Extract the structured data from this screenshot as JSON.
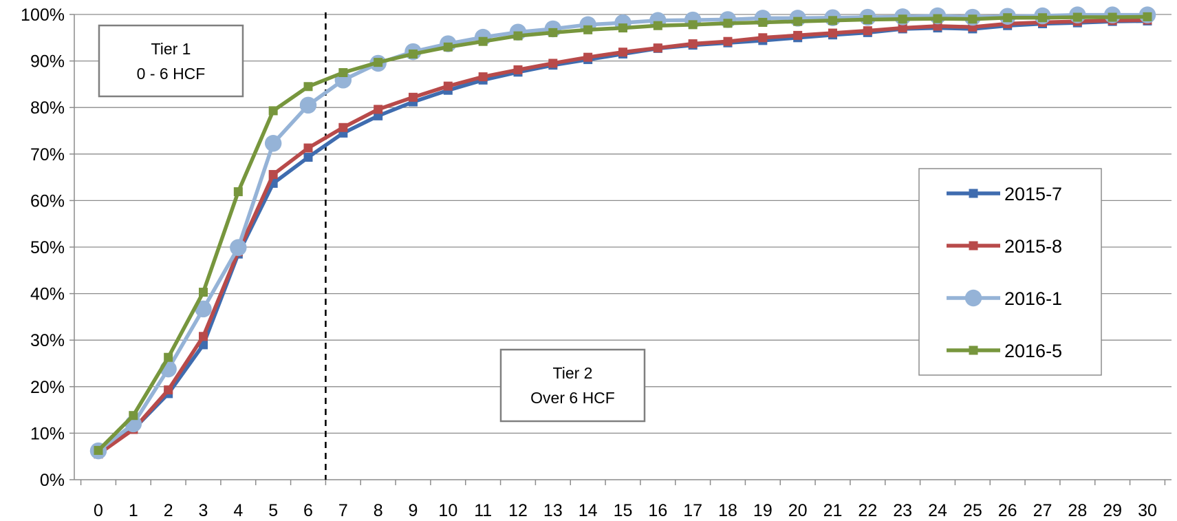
{
  "chart_data": {
    "type": "line",
    "title": "",
    "xlabel": "",
    "ylabel": "",
    "x": [
      0,
      1,
      2,
      3,
      4,
      5,
      6,
      7,
      8,
      9,
      10,
      11,
      12,
      13,
      14,
      15,
      16,
      17,
      18,
      19,
      20,
      21,
      22,
      23,
      24,
      25,
      26,
      27,
      28,
      29,
      30
    ],
    "x_tick_labels": [
      "0",
      "1",
      "2",
      "3",
      "4",
      "5",
      "6",
      "7",
      "8",
      "9",
      "10",
      "11",
      "12",
      "13",
      "14",
      "15",
      "16",
      "17",
      "18",
      "19",
      "20",
      "21",
      "22",
      "23",
      "24",
      "25",
      "26",
      "27",
      "28",
      "29",
      "30"
    ],
    "ylim": [
      0,
      100
    ],
    "y_ticks": [
      0,
      10,
      20,
      30,
      40,
      50,
      60,
      70,
      80,
      90,
      100
    ],
    "y_tick_labels": [
      "0%",
      "10%",
      "20%",
      "30%",
      "40%",
      "50%",
      "60%",
      "70%",
      "80%",
      "90%",
      "100%"
    ],
    "grid": "horizontal",
    "legend_position": "right",
    "series": [
      {
        "name": "2015-7",
        "color": "#3F6CAF",
        "marker": "square",
        "values": [
          6.0,
          10.8,
          18.5,
          29.0,
          48.5,
          63.7,
          69.3,
          74.5,
          78.2,
          81.2,
          83.7,
          85.9,
          87.6,
          89.1,
          90.3,
          91.5,
          92.7,
          93.4,
          93.9,
          94.4,
          95.0,
          95.6,
          96.1,
          96.9,
          97.1,
          96.9,
          97.6,
          98.0,
          98.2,
          98.5,
          98.6
        ]
      },
      {
        "name": "2015-8",
        "color": "#B84A4A",
        "marker": "square",
        "values": [
          5.5,
          10.8,
          19.3,
          30.8,
          49.0,
          65.6,
          71.3,
          75.7,
          79.6,
          82.2,
          84.6,
          86.6,
          88.1,
          89.5,
          90.8,
          91.9,
          92.8,
          93.7,
          94.2,
          95.0,
          95.5,
          96.0,
          96.5,
          97.1,
          97.5,
          97.3,
          98.0,
          98.3,
          98.5,
          98.7,
          98.8
        ]
      },
      {
        "name": "2016-1",
        "color": "#95B3D7",
        "marker": "circle",
        "values": [
          6.2,
          12.0,
          23.8,
          36.7,
          49.9,
          72.3,
          80.5,
          85.9,
          89.5,
          92.0,
          93.7,
          95.1,
          96.2,
          96.9,
          97.8,
          98.2,
          98.7,
          98.8,
          98.9,
          99.2,
          99.2,
          99.3,
          99.4,
          99.5,
          99.7,
          99.4,
          99.6,
          99.7,
          99.9,
          99.9,
          99.9
        ]
      },
      {
        "name": "2016-5",
        "color": "#77963D",
        "marker": "square",
        "values": [
          6.3,
          13.8,
          26.3,
          40.3,
          61.9,
          79.3,
          84.5,
          87.5,
          89.7,
          91.5,
          93.0,
          94.2,
          95.4,
          96.1,
          96.7,
          97.1,
          97.6,
          97.8,
          98.1,
          98.3,
          98.5,
          98.7,
          98.9,
          99.0,
          99.1,
          99.0,
          99.3,
          99.3,
          99.4,
          99.4,
          99.5
        ]
      }
    ],
    "vline": {
      "x": 6.5,
      "style": "dashed"
    },
    "annotations": [
      {
        "lines": [
          "Tier 1",
          "0 - 6 HCF"
        ]
      },
      {
        "lines": [
          "Tier 2",
          "Over 6 HCF"
        ]
      }
    ]
  }
}
